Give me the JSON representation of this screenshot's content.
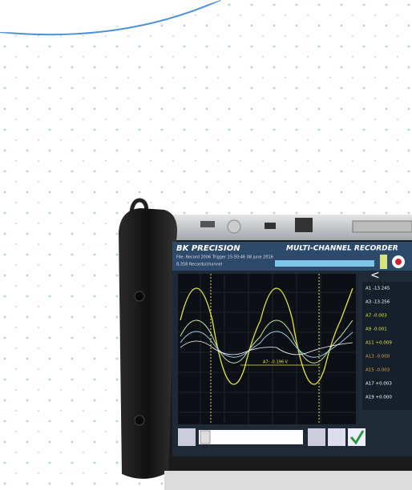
{
  "brand": "BK PRECISION",
  "product": "MULTI-CHANNEL RECORDER",
  "file_line": "File: Record 2006  Trigger 15:50:46 08 june 2016",
  "records_line": "8,358 Records/channel",
  "cursor_label": "A7: -0.196 V",
  "channels": [
    "A1 -13.245",
    "A3 -13.256",
    "A7 -0.003",
    "A9 -0.001",
    "A11 +0.009",
    "A13 -0.000",
    "A15 -0.003",
    "A17 +0.003",
    "A19 +0.000"
  ]
}
